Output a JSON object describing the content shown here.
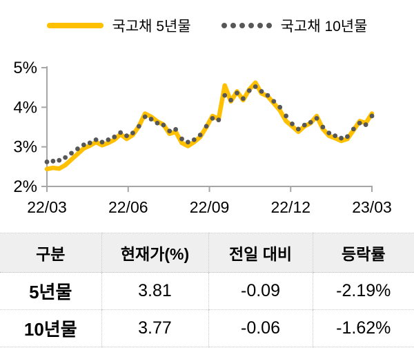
{
  "legend": {
    "series1_label": "국고채 5년물",
    "series2_label": "국고채 10년물"
  },
  "colors": {
    "line_5y": "#FFC000",
    "dots_10y": "#575757",
    "axis": "#A6A6A6",
    "table_header_bg": "#EFEFEF",
    "table_border": "#C9C9C9",
    "text": "#000000"
  },
  "chart_data": {
    "type": "line",
    "title": "",
    "xlabel": "",
    "ylabel": "",
    "ylim": [
      2,
      5
    ],
    "grid": false,
    "legend_position": "top",
    "axis_color": "#A6A6A6",
    "y_ticks": [
      "5%",
      "4%",
      "3%",
      "2%"
    ],
    "x_ticks": [
      "22/03",
      "22/06",
      "22/09",
      "22/12",
      "23/03"
    ],
    "series": [
      {
        "name": "국고채 5년물",
        "style": "solid",
        "color": "#FFC000",
        "values": [
          2.44,
          2.47,
          2.45,
          2.54,
          2.68,
          2.82,
          2.96,
          3.03,
          3.12,
          3.04,
          3.1,
          3.18,
          3.32,
          3.2,
          3.3,
          3.52,
          3.84,
          3.76,
          3.64,
          3.56,
          3.33,
          3.38,
          3.1,
          3.02,
          3.12,
          3.25,
          3.5,
          3.78,
          3.7,
          4.55,
          4.15,
          4.4,
          4.18,
          4.45,
          4.62,
          4.35,
          4.28,
          4.1,
          3.92,
          3.65,
          3.52,
          3.38,
          3.52,
          3.6,
          3.78,
          3.45,
          3.28,
          3.22,
          3.15,
          3.2,
          3.42,
          3.65,
          3.6,
          3.84
        ]
      },
      {
        "name": "국고채 10년물",
        "style": "dotted",
        "color": "#575757",
        "values": [
          2.62,
          2.64,
          2.66,
          2.73,
          2.84,
          2.95,
          3.05,
          3.1,
          3.18,
          3.12,
          3.18,
          3.25,
          3.36,
          3.28,
          3.35,
          3.52,
          3.76,
          3.7,
          3.6,
          3.55,
          3.4,
          3.44,
          3.2,
          3.12,
          3.18,
          3.3,
          3.52,
          3.72,
          3.68,
          4.3,
          4.18,
          4.36,
          4.22,
          4.42,
          4.52,
          4.4,
          4.3,
          4.15,
          4.0,
          3.78,
          3.58,
          3.45,
          3.55,
          3.62,
          3.72,
          3.5,
          3.35,
          3.28,
          3.22,
          3.26,
          3.45,
          3.6,
          3.56,
          3.78
        ]
      }
    ]
  },
  "table": {
    "headers": [
      "구분",
      "현재가(%)",
      "전일 대비",
      "등락률"
    ],
    "rows": [
      [
        "5년물",
        "3.81",
        "-0.09",
        "-2.19%"
      ],
      [
        "10년물",
        "3.77",
        "-0.06",
        "-1.62%"
      ]
    ]
  }
}
